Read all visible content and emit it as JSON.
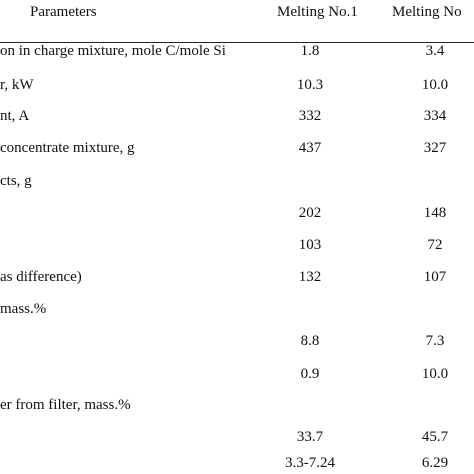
{
  "header": {
    "parameters": "Parameters",
    "melting1": "Melting No.1",
    "melting2": "Melting No"
  },
  "rows": [
    {
      "param": "on in charge mixture, mole C/mole Si",
      "m1": "1.8",
      "m2": "3.4"
    },
    {
      "param": "r, kW",
      "m1": "10.3",
      "m2": "10.0"
    },
    {
      "param": "nt, A",
      "m1": "332",
      "m2": "334"
    },
    {
      "param": " concentrate mixture, g",
      "m1": "437",
      "m2": "327"
    },
    {
      "param": "cts, g",
      "m1": "",
      "m2": ""
    },
    {
      "param": "",
      "m1": "202",
      "m2": "148"
    },
    {
      "param": "",
      "m1": "103",
      "m2": "72"
    },
    {
      "param": "as difference)",
      "m1": "132",
      "m2": "107"
    },
    {
      "param": " mass.%",
      "m1": "",
      "m2": ""
    },
    {
      "param": "",
      "m1": "8.8",
      "m2": "7.3"
    },
    {
      "param": "",
      "m1": "0.9",
      "m2": "10.0"
    },
    {
      "param": "er from filter, mass.%",
      "m1": "",
      "m2": ""
    },
    {
      "param": "",
      "m1": "33.7",
      "m2": "45.7"
    },
    {
      "param": "",
      "m1": "3.3-7.24",
      "m2": "6.29"
    }
  ]
}
